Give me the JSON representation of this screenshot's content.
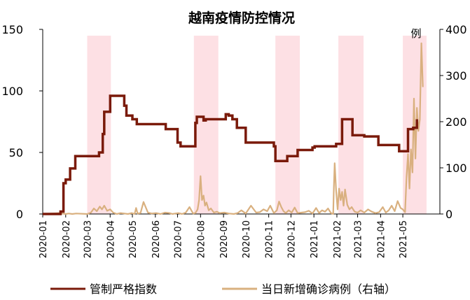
{
  "chart_data": {
    "type": "line",
    "title": "越南疫情防控情况",
    "right_unit": "例",
    "legend_position": "bottom",
    "grid": false,
    "x_tick_labels": [
      "2020-01",
      "2020-02",
      "2020-03",
      "2020-04",
      "2020-05",
      "2020-06",
      "2020-07",
      "2020-08",
      "2020-09",
      "2020-10",
      "2020-11",
      "2020-12",
      "2021-01",
      "2021-02",
      "2021-03",
      "2021-04",
      "2021-05"
    ],
    "left_axis": {
      "min": 0,
      "max": 150,
      "ticks": [
        0,
        50,
        100,
        150
      ]
    },
    "right_axis": {
      "min": 0,
      "max": 400,
      "ticks": [
        0,
        100,
        200,
        300,
        400
      ]
    },
    "x_range": [
      "2020-01-01",
      "2021-06-20"
    ],
    "shaded_periods": [
      [
        "2020-03-01",
        "2020-04-02"
      ],
      [
        "2020-07-23",
        "2020-08-25"
      ],
      [
        "2020-11-10",
        "2020-12-13"
      ],
      [
        "2021-02-03",
        "2021-03-09"
      ],
      [
        "2021-05-01",
        "2021-06-02"
      ]
    ],
    "series": [
      {
        "name": "管制严格指数",
        "axis": "left",
        "color": "#7a1a0a",
        "x": [
          "2020-01-01",
          "2020-01-21",
          "2020-01-25",
          "2020-01-29",
          "2020-02-01",
          "2020-02-04",
          "2020-02-07",
          "2020-02-10",
          "2020-02-14",
          "2020-03-01",
          "2020-03-14",
          "2020-03-17",
          "2020-03-22",
          "2020-03-24",
          "2020-03-27",
          "2020-04-01",
          "2020-04-15",
          "2020-04-20",
          "2020-04-23",
          "2020-05-01",
          "2020-05-07",
          "2020-05-25",
          "2020-06-15",
          "2020-06-30",
          "2020-07-01",
          "2020-07-05",
          "2020-07-22",
          "2020-07-25",
          "2020-07-27",
          "2020-07-30",
          "2020-08-05",
          "2020-08-08",
          "2020-08-25",
          "2020-08-27",
          "2020-09-04",
          "2020-09-08",
          "2020-09-13",
          "2020-09-16",
          "2020-09-19",
          "2020-10-01",
          "2020-11-08",
          "2020-11-10",
          "2020-11-24",
          "2020-11-26",
          "2020-12-10",
          "2020-12-14",
          "2020-12-30",
          "2021-01-02",
          "2021-01-27",
          "2021-01-31",
          "2021-02-08",
          "2021-02-11",
          "2021-02-22",
          "2021-03-08",
          "2021-03-10",
          "2021-03-20",
          "2021-03-29",
          "2021-04-10",
          "2021-04-15",
          "2021-04-26",
          "2021-04-29",
          "2021-05-08",
          "2021-05-12",
          "2021-05-15",
          "2021-05-20"
        ],
        "values": [
          0,
          0,
          2,
          25,
          28,
          28,
          37,
          37,
          47,
          47,
          47,
          50,
          65,
          83,
          83,
          96,
          96,
          88,
          80,
          77,
          73,
          73,
          69,
          69,
          58,
          55,
          55,
          74,
          79,
          79,
          76,
          77,
          77,
          77,
          81,
          80,
          77,
          77,
          70,
          58,
          55,
          43,
          43,
          47,
          52,
          52,
          54,
          55,
          55,
          57,
          77,
          77,
          64,
          64,
          63,
          63,
          56,
          56,
          56,
          51,
          51,
          69,
          69,
          70,
          77
        ]
      },
      {
        "name": "当日新增确诊病例（右轴）",
        "axis": "right",
        "color": "#d9b07f",
        "x": [
          "2020-01-01",
          "2020-01-23",
          "2020-02-01",
          "2020-02-05",
          "2020-02-10",
          "2020-02-15",
          "2020-03-01",
          "2020-03-06",
          "2020-03-10",
          "2020-03-14",
          "2020-03-18",
          "2020-03-21",
          "2020-03-24",
          "2020-03-28",
          "2020-04-01",
          "2020-04-05",
          "2020-04-10",
          "2020-04-15",
          "2020-04-20",
          "2020-04-25",
          "2020-04-30",
          "2020-05-04",
          "2020-05-06",
          "2020-05-08",
          "2020-05-12",
          "2020-05-16",
          "2020-05-22",
          "2020-05-27",
          "2020-06-02",
          "2020-06-08",
          "2020-06-14",
          "2020-06-20",
          "2020-06-24",
          "2020-06-28",
          "2020-07-02",
          "2020-07-07",
          "2020-07-12",
          "2020-07-17",
          "2020-07-22",
          "2020-07-25",
          "2020-07-28",
          "2020-07-30",
          "2020-08-01",
          "2020-08-03",
          "2020-08-05",
          "2020-08-07",
          "2020-08-09",
          "2020-08-12",
          "2020-08-15",
          "2020-08-19",
          "2020-08-23",
          "2020-08-27",
          "2020-09-02",
          "2020-09-08",
          "2020-09-15",
          "2020-09-20",
          "2020-09-25",
          "2020-10-01",
          "2020-10-08",
          "2020-10-15",
          "2020-10-20",
          "2020-10-25",
          "2020-10-30",
          "2020-11-03",
          "2020-11-08",
          "2020-11-12",
          "2020-11-15",
          "2020-11-18",
          "2020-11-21",
          "2020-11-24",
          "2020-11-28",
          "2020-12-02",
          "2020-12-06",
          "2020-12-10",
          "2020-12-15",
          "2020-12-20",
          "2020-12-25",
          "2020-12-30",
          "2021-01-04",
          "2021-01-08",
          "2021-01-12",
          "2021-01-16",
          "2021-01-20",
          "2021-01-24",
          "2021-01-27",
          "2021-01-28",
          "2021-01-29",
          "2021-01-31",
          "2021-02-02",
          "2021-02-04",
          "2021-02-06",
          "2021-02-08",
          "2021-02-10",
          "2021-02-12",
          "2021-02-15",
          "2021-02-18",
          "2021-02-21",
          "2021-02-25",
          "2021-03-01",
          "2021-03-05",
          "2021-03-10",
          "2021-03-15",
          "2021-03-20",
          "2021-03-25",
          "2021-03-30",
          "2021-04-04",
          "2021-04-08",
          "2021-04-12",
          "2021-04-16",
          "2021-04-20",
          "2021-04-24",
          "2021-04-28",
          "2021-05-01",
          "2021-05-04",
          "2021-05-06",
          "2021-05-08",
          "2021-05-10",
          "2021-05-12",
          "2021-05-14",
          "2021-05-16",
          "2021-05-18",
          "2021-05-20",
          "2021-05-22",
          "2021-05-24",
          "2021-05-26",
          "2021-05-28"
        ],
        "values": [
          0,
          2,
          0,
          1,
          0,
          1,
          0,
          3,
          12,
          6,
          16,
          10,
          18,
          7,
          10,
          3,
          0,
          2,
          1,
          0,
          2,
          0,
          13,
          1,
          2,
          26,
          3,
          1,
          2,
          0,
          3,
          2,
          0,
          1,
          2,
          0,
          3,
          15,
          1,
          2,
          10,
          30,
          82,
          30,
          40,
          18,
          25,
          8,
          12,
          3,
          5,
          2,
          3,
          1,
          0,
          2,
          8,
          1,
          18,
          3,
          4,
          10,
          6,
          18,
          2,
          8,
          27,
          15,
          6,
          2,
          8,
          3,
          14,
          2,
          3,
          4,
          7,
          1,
          13,
          2,
          8,
          5,
          12,
          2,
          0,
          60,
          110,
          50,
          10,
          55,
          30,
          48,
          18,
          53,
          20,
          10,
          15,
          5,
          3,
          8,
          3,
          10,
          5,
          2,
          4,
          15,
          3,
          8,
          18,
          6,
          28,
          13,
          10,
          4,
          80,
          130,
          55,
          140,
          90,
          250,
          120,
          230,
          180,
          205,
          370,
          275
        ]
      }
    ]
  }
}
